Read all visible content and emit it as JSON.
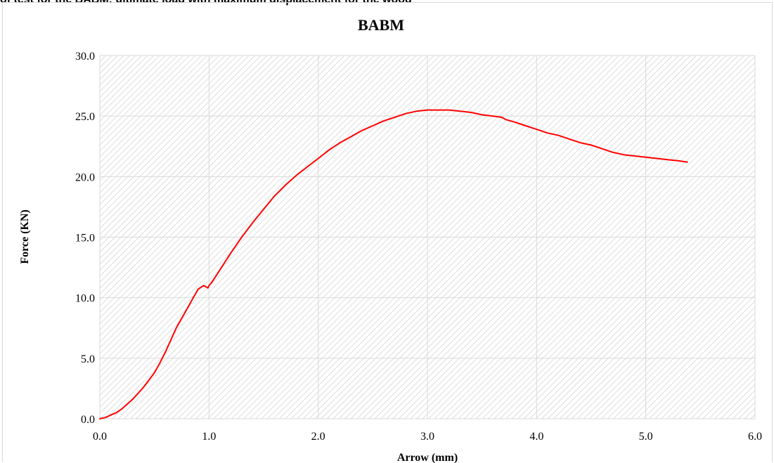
{
  "page": {
    "caption": "of test for the BABM: ultimate load with maximum displacement for the wood"
  },
  "chart_data": {
    "type": "line",
    "title": "BABM",
    "xlabel": "Arrow (mm)",
    "ylabel": "Force (KN)",
    "xlim": [
      0,
      6
    ],
    "ylim": [
      0,
      30
    ],
    "x_ticks": [
      "0.0",
      "1.0",
      "2.0",
      "3.0",
      "4.0",
      "5.0",
      "6.0"
    ],
    "y_ticks": [
      "0.0",
      "5.0",
      "10.0",
      "15.0",
      "20.0",
      "25.0",
      "30.0"
    ],
    "grid": true,
    "legend": "none",
    "series": [
      {
        "color": "#ff0000",
        "x": [
          0,
          0.05,
          0.1,
          0.15,
          0.2,
          0.25,
          0.3,
          0.35,
          0.4,
          0.45,
          0.5,
          0.55,
          0.6,
          0.65,
          0.7,
          0.75,
          0.8,
          0.85,
          0.9,
          0.95,
          0.99,
          1.0,
          1.02,
          1.05,
          1.1,
          1.2,
          1.3,
          1.4,
          1.5,
          1.6,
          1.7,
          1.8,
          1.9,
          2.0,
          2.1,
          2.2,
          2.3,
          2.4,
          2.5,
          2.6,
          2.7,
          2.8,
          2.9,
          3.0,
          3.1,
          3.2,
          3.3,
          3.4,
          3.5,
          3.6,
          3.68,
          3.7,
          3.72,
          3.8,
          3.9,
          4.0,
          4.1,
          4.2,
          4.3,
          4.4,
          4.5,
          4.6,
          4.7,
          4.8,
          4.9,
          5.0,
          5.1,
          5.2,
          5.3,
          5.38
        ],
        "y": [
          0,
          0.1,
          0.3,
          0.5,
          0.8,
          1.2,
          1.6,
          2.1,
          2.6,
          3.2,
          3.8,
          4.6,
          5.5,
          6.5,
          7.5,
          8.3,
          9.1,
          9.9,
          10.7,
          11.0,
          10.8,
          11.0,
          11.2,
          11.6,
          12.3,
          13.7,
          15.0,
          16.2,
          17.3,
          18.4,
          19.3,
          20.1,
          20.8,
          21.5,
          22.2,
          22.8,
          23.3,
          23.8,
          24.2,
          24.6,
          24.9,
          25.2,
          25.4,
          25.5,
          25.5,
          25.5,
          25.4,
          25.3,
          25.1,
          25.0,
          24.9,
          24.8,
          24.7,
          24.5,
          24.2,
          23.9,
          23.6,
          23.4,
          23.1,
          22.8,
          22.6,
          22.3,
          22.0,
          21.8,
          21.7,
          21.6,
          21.5,
          21.4,
          21.3,
          21.2
        ]
      }
    ]
  }
}
